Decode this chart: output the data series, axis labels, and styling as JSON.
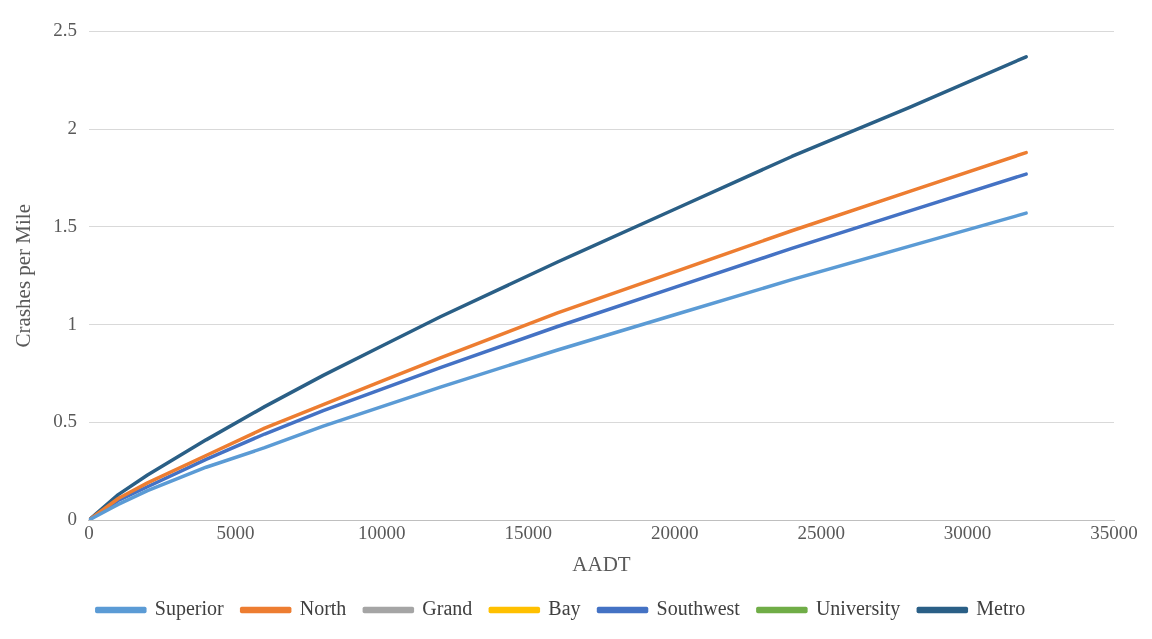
{
  "chart_data": {
    "type": "line",
    "xlabel": "AADT",
    "ylabel": "Crashes per Mile",
    "x": [
      0,
      1000,
      2000,
      4000,
      6000,
      8000,
      10000,
      12000,
      16000,
      20000,
      24000,
      28000,
      32000
    ],
    "xlim": [
      0,
      35000
    ],
    "xticks": [
      0,
      5000,
      10000,
      15000,
      20000,
      25000,
      30000,
      35000
    ],
    "ylim": [
      0,
      2.5
    ],
    "yticks": [
      0,
      0.5,
      1,
      1.5,
      2,
      2.5
    ],
    "grid": "y",
    "legend": "bottom",
    "marker": "none",
    "line_style": "solid",
    "series": [
      {
        "name": "Superior",
        "color": "#5b9bd5",
        "values": [
          0,
          0.08,
          0.15,
          0.27,
          0.37,
          0.48,
          0.58,
          0.68,
          0.87,
          1.05,
          1.23,
          1.4,
          1.57
        ]
      },
      {
        "name": "North",
        "color": "#ed7d31",
        "values": [
          0,
          0.11,
          0.19,
          0.33,
          0.47,
          0.59,
          0.71,
          0.83,
          1.06,
          1.27,
          1.48,
          1.68,
          1.88
        ]
      },
      {
        "name": "Grand",
        "color": "#a5a5a5",
        "values": [
          null,
          null,
          null,
          null,
          null,
          null,
          null,
          null,
          null,
          null,
          null,
          null,
          null
        ]
      },
      {
        "name": "Bay",
        "color": "#ffc000",
        "values": [
          null,
          null,
          null,
          null,
          null,
          null,
          null,
          null,
          null,
          null,
          null,
          null,
          null
        ]
      },
      {
        "name": "Southwest",
        "color": "#4472c4",
        "values": [
          0,
          0.1,
          0.17,
          0.31,
          0.44,
          0.56,
          0.67,
          0.78,
          0.99,
          1.19,
          1.39,
          1.58,
          1.77
        ]
      },
      {
        "name": "University",
        "color": "#70ad47",
        "values": [
          null,
          null,
          null,
          null,
          null,
          null,
          null,
          null,
          null,
          null,
          null,
          null,
          null
        ]
      },
      {
        "name": "Metro",
        "color": "#2a5f86",
        "values": [
          0,
          0.13,
          0.23,
          0.41,
          0.58,
          0.74,
          0.89,
          1.04,
          1.32,
          1.59,
          1.86,
          2.11,
          2.37
        ]
      }
    ]
  }
}
